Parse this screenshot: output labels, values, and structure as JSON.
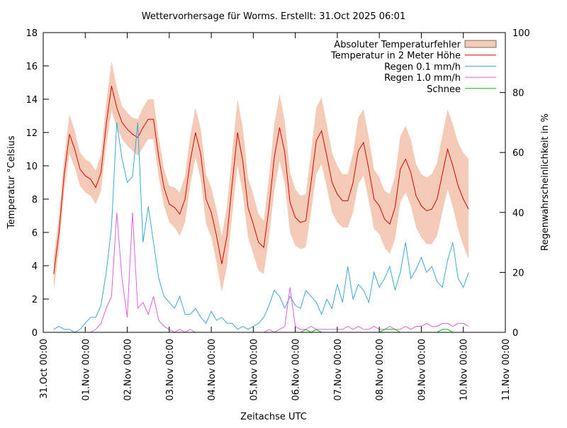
{
  "chart_data": {
    "type": "line",
    "title": "Wettervorhersage für Worms. Erstellt: 31.Oct 2025 06:01",
    "xlabel": "Zeitachse UTC",
    "ylabel": "Temperatur °Celsius",
    "y2label": "Regenwahrscheinlichkeit in %",
    "x": [
      "31.Oct 06:00",
      "31.Oct 09:00",
      "31.Oct 12:00",
      "31.Oct 15:00",
      "31.Oct 18:00",
      "31.Oct 21:00",
      "01.Nov 00:00",
      "01.Nov 03:00",
      "01.Nov 06:00",
      "01.Nov 09:00",
      "01.Nov 12:00",
      "01.Nov 15:00",
      "01.Nov 18:00",
      "01.Nov 21:00",
      "02.Nov 00:00",
      "02.Nov 03:00",
      "02.Nov 06:00",
      "02.Nov 09:00",
      "02.Nov 12:00",
      "02.Nov 15:00",
      "02.Nov 18:00",
      "02.Nov 21:00",
      "03.Nov 00:00",
      "03.Nov 03:00",
      "03.Nov 06:00",
      "03.Nov 09:00",
      "03.Nov 12:00",
      "03.Nov 15:00",
      "03.Nov 18:00",
      "03.Nov 21:00",
      "04.Nov 00:00",
      "04.Nov 03:00",
      "04.Nov 06:00",
      "04.Nov 09:00",
      "04.Nov 12:00",
      "04.Nov 15:00",
      "04.Nov 18:00",
      "04.Nov 21:00",
      "05.Nov 00:00",
      "05.Nov 03:00",
      "05.Nov 06:00",
      "05.Nov 09:00",
      "05.Nov 12:00",
      "05.Nov 15:00",
      "05.Nov 18:00",
      "05.Nov 21:00",
      "06.Nov 00:00",
      "06.Nov 03:00",
      "06.Nov 06:00",
      "06.Nov 09:00",
      "06.Nov 12:00",
      "06.Nov 15:00",
      "06.Nov 18:00",
      "06.Nov 21:00",
      "07.Nov 00:00",
      "07.Nov 03:00",
      "07.Nov 06:00",
      "07.Nov 09:00",
      "07.Nov 12:00",
      "07.Nov 15:00",
      "07.Nov 18:00",
      "07.Nov 21:00",
      "08.Nov 00:00",
      "08.Nov 03:00",
      "08.Nov 06:00",
      "08.Nov 09:00",
      "08.Nov 12:00",
      "08.Nov 15:00",
      "08.Nov 18:00",
      "08.Nov 21:00",
      "09.Nov 00:00",
      "09.Nov 03:00",
      "09.Nov 06:00",
      "09.Nov 09:00",
      "09.Nov 12:00",
      "09.Nov 15:00",
      "09.Nov 18:00",
      "09.Nov 21:00",
      "10.Nov 00:00",
      "10.Nov 03:00"
    ],
    "xlim": [
      "31.Oct 00:00",
      "11.Nov 00:00"
    ],
    "xticks": [
      "31.Oct 00:00",
      "01.Nov 00:00",
      "02.Nov 00:00",
      "03.Nov 00:00",
      "04.Nov 00:00",
      "05.Nov 00:00",
      "06.Nov 00:00",
      "07.Nov 00:00",
      "08.Nov 00:00",
      "09.Nov 00:00",
      "10.Nov 00:00",
      "11.Nov 00:00"
    ],
    "ylim": [
      0,
      18
    ],
    "yticks": [
      0,
      2,
      4,
      6,
      8,
      10,
      12,
      14,
      16,
      18
    ],
    "y2lim": [
      0,
      100
    ],
    "y2ticks": [
      0,
      20,
      40,
      60,
      80,
      100
    ],
    "legend": "top-right",
    "series": [
      {
        "name": "Absoluter Temperaturfehler",
        "type": "band",
        "color": "#f3cbb6",
        "values": [
          1.0,
          1.0,
          1.0,
          1.2,
          1.1,
          1.0,
          1.0,
          1.0,
          1.0,
          1.1,
          1.3,
          1.5,
          1.2,
          1.0,
          1.0,
          1.0,
          1.1,
          1.2,
          1.2,
          1.2,
          1.2,
          1.1,
          1.1,
          1.2,
          1.3,
          1.4,
          1.5,
          1.5,
          1.5,
          1.5,
          1.5,
          1.6,
          1.7,
          1.8,
          1.9,
          2.0,
          2.0,
          1.8,
          1.8,
          1.7,
          1.6,
          1.8,
          2.0,
          2.0,
          1.9,
          1.8,
          1.7,
          1.6,
          1.6,
          1.8,
          2.0,
          2.0,
          1.9,
          1.8,
          1.7,
          1.6,
          1.6,
          1.8,
          2.0,
          2.0,
          1.9,
          1.8,
          1.7,
          1.7,
          1.8,
          1.9,
          2.0,
          2.0,
          2.0,
          1.9,
          1.9,
          2.0,
          2.1,
          2.2,
          2.3,
          2.4,
          2.5,
          2.6,
          2.8,
          3.0
        ]
      },
      {
        "name": "Temperatur in 2 Meter Höhe",
        "color": "#e00000",
        "values": [
          3.5,
          6.0,
          9.5,
          11.9,
          11.0,
          9.8,
          9.4,
          9.2,
          8.7,
          9.6,
          12.5,
          14.8,
          13.5,
          12.6,
          12.2,
          11.9,
          11.7,
          12.3,
          12.8,
          12.8,
          10.5,
          8.7,
          7.7,
          7.5,
          7.1,
          8.0,
          10.3,
          12.0,
          10.7,
          8.0,
          7.2,
          5.8,
          4.1,
          5.8,
          9.0,
          12.0,
          10.3,
          7.5,
          6.5,
          5.4,
          5.1,
          7.5,
          10.5,
          12.3,
          10.8,
          7.8,
          6.9,
          6.6,
          6.7,
          9.0,
          11.5,
          12.1,
          10.6,
          9.0,
          8.3,
          7.9,
          7.9,
          9.0,
          10.9,
          11.4,
          9.8,
          8.0,
          7.6,
          6.8,
          6.5,
          7.5,
          9.8,
          10.4,
          9.6,
          8.2,
          7.6,
          7.3,
          7.4,
          8.0,
          9.5,
          11.0,
          10.0,
          8.8,
          8.0,
          7.4
        ]
      },
      {
        "name": "Regen 0.1 mm/h",
        "axis": "y2",
        "color": "#3ba8dc",
        "values": [
          1,
          2,
          1,
          1,
          0,
          1,
          3,
          5,
          5,
          9,
          20,
          35,
          70,
          58,
          50,
          52,
          70,
          30,
          42,
          30,
          18,
          12,
          10,
          8,
          12,
          6,
          6,
          8,
          5,
          3,
          7,
          4,
          5,
          3,
          3,
          1,
          2,
          1,
          2,
          3,
          5,
          9,
          14,
          12,
          8,
          12,
          9,
          8,
          14,
          12,
          10,
          6,
          11,
          8,
          16,
          10,
          22,
          11,
          16,
          14,
          10,
          20,
          15,
          18,
          22,
          14,
          20,
          30,
          18,
          21,
          25,
          20,
          22,
          17,
          15,
          24,
          30,
          18,
          15,
          20
        ]
      },
      {
        "name": "Regen 1.0 mm/h",
        "axis": "y2",
        "color": "#e060e0",
        "values": [
          0,
          0,
          0,
          0,
          0,
          0,
          0,
          0,
          1,
          3,
          8,
          12,
          40,
          18,
          5,
          40,
          8,
          10,
          6,
          12,
          4,
          2,
          1,
          0,
          1,
          0,
          1,
          0,
          0,
          0,
          0,
          0,
          0,
          0,
          0,
          0,
          0,
          0,
          0,
          0,
          0,
          1,
          0,
          1,
          2,
          15,
          2,
          1,
          1,
          2,
          1,
          1,
          1,
          1,
          1,
          1,
          2,
          1,
          2,
          1,
          1,
          2,
          1,
          1,
          2,
          1,
          1,
          2,
          1,
          2,
          2,
          3,
          2,
          2,
          3,
          3,
          2,
          3,
          3,
          2
        ]
      },
      {
        "name": "Schnee",
        "axis": "y2",
        "color": "#00c000",
        "values": [
          0,
          0,
          0,
          0,
          0,
          0,
          0,
          0,
          0,
          0,
          0,
          0,
          0,
          0,
          0,
          0,
          0,
          0,
          0,
          0,
          0,
          0,
          0,
          0,
          0,
          0,
          0,
          0,
          0,
          0,
          0,
          0,
          0,
          0,
          0,
          0,
          0,
          0,
          0,
          0,
          0,
          0,
          0,
          0,
          0,
          0,
          0,
          0,
          1,
          0,
          1,
          0,
          0,
          0,
          0,
          0,
          0,
          0,
          0,
          0,
          0,
          0,
          0,
          1,
          1,
          1,
          0,
          0,
          0,
          0,
          0,
          0,
          0,
          0,
          1,
          1,
          0,
          0,
          0,
          0
        ]
      }
    ]
  }
}
